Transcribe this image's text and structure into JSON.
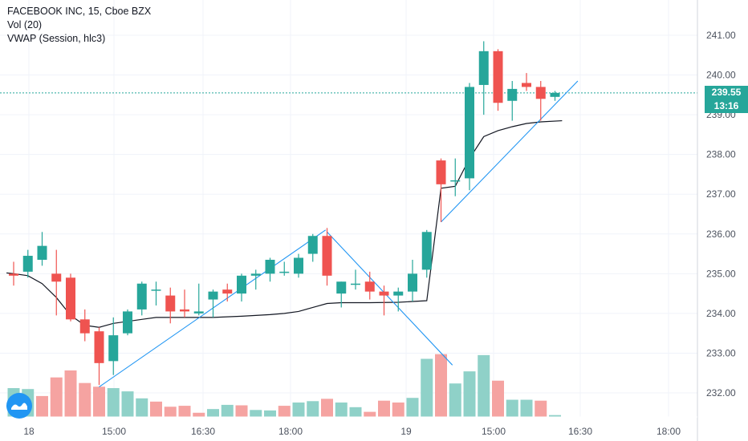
{
  "legend": {
    "title": "FACEBOOK INC, 15, Cboe BZX",
    "volume": "Vol (20)",
    "vwap": "VWAP (Session, hlc3)"
  },
  "price_tags": {
    "last_price": "239.55",
    "countdown": "13:16"
  },
  "colors": {
    "up": "#26a69a",
    "down": "#ef5350",
    "up_volume": "#8fd1c8",
    "down_volume": "#f5a3a1",
    "vwap_line": "#131722",
    "trendline": "#2196f3",
    "last_price_line": "#26a69a",
    "grid": "#f0f3fa",
    "axis_text": "#4c525e"
  },
  "chart_data": {
    "type": "candlestick",
    "symbol": "FACEBOOK INC",
    "interval": "15",
    "exchange": "Cboe BZX",
    "ylim": [
      231.4,
      241.9
    ],
    "y_ticks": [
      "241.00",
      "240.00",
      "239.00",
      "238.00",
      "237.00",
      "236.00",
      "235.00",
      "234.00",
      "233.00",
      "232.00"
    ],
    "x_ticks": [
      "18",
      "15:00",
      "16:30",
      "18:00",
      "19",
      "15:00",
      "16:30",
      "18:00"
    ],
    "grid": true,
    "last_price": 239.55,
    "candles": [
      {
        "o": 235.0,
        "h": 235.3,
        "l": 234.7,
        "c": 234.95
      },
      {
        "o": 235.05,
        "h": 235.6,
        "l": 234.9,
        "c": 235.45
      },
      {
        "o": 235.35,
        "h": 236.05,
        "l": 235.2,
        "c": 235.7
      },
      {
        "o": 235.0,
        "h": 235.6,
        "l": 233.95,
        "c": 234.8
      },
      {
        "o": 234.9,
        "h": 235.0,
        "l": 233.8,
        "c": 233.85
      },
      {
        "o": 233.85,
        "h": 234.1,
        "l": 233.3,
        "c": 233.5
      },
      {
        "o": 233.55,
        "h": 233.65,
        "l": 232.2,
        "c": 232.75
      },
      {
        "o": 232.8,
        "h": 233.9,
        "l": 232.45,
        "c": 233.45
      },
      {
        "o": 233.5,
        "h": 234.1,
        "l": 233.45,
        "c": 234.05
      },
      {
        "o": 234.1,
        "h": 234.8,
        "l": 233.95,
        "c": 234.75
      },
      {
        "o": 234.6,
        "h": 234.8,
        "l": 234.2,
        "c": 234.6
      },
      {
        "o": 234.45,
        "h": 234.65,
        "l": 233.75,
        "c": 234.05
      },
      {
        "o": 234.1,
        "h": 234.6,
        "l": 233.9,
        "c": 234.05
      },
      {
        "o": 234.0,
        "h": 234.75,
        "l": 233.95,
        "c": 234.05
      },
      {
        "o": 234.35,
        "h": 234.6,
        "l": 233.9,
        "c": 234.55
      },
      {
        "o": 234.6,
        "h": 234.75,
        "l": 234.3,
        "c": 234.5
      },
      {
        "o": 234.5,
        "h": 235.0,
        "l": 234.3,
        "c": 234.95
      },
      {
        "o": 234.95,
        "h": 235.1,
        "l": 234.6,
        "c": 235.0
      },
      {
        "o": 235.0,
        "h": 235.4,
        "l": 234.8,
        "c": 235.35
      },
      {
        "o": 235.05,
        "h": 235.3,
        "l": 234.95,
        "c": 235.05
      },
      {
        "o": 235.0,
        "h": 235.5,
        "l": 234.9,
        "c": 235.4
      },
      {
        "o": 235.5,
        "h": 236.0,
        "l": 235.3,
        "c": 235.95
      },
      {
        "o": 235.95,
        "h": 236.15,
        "l": 234.7,
        "c": 234.95
      },
      {
        "o": 234.5,
        "h": 234.8,
        "l": 234.15,
        "c": 234.8
      },
      {
        "o": 234.75,
        "h": 235.1,
        "l": 234.6,
        "c": 234.75
      },
      {
        "o": 234.8,
        "h": 235.05,
        "l": 234.35,
        "c": 234.55
      },
      {
        "o": 234.55,
        "h": 234.7,
        "l": 233.95,
        "c": 234.45
      },
      {
        "o": 234.45,
        "h": 234.65,
        "l": 234.05,
        "c": 234.55
      },
      {
        "o": 234.55,
        "h": 235.35,
        "l": 234.3,
        "c": 235.0
      },
      {
        "o": 235.1,
        "h": 236.1,
        "l": 234.9,
        "c": 236.05
      },
      {
        "o": 237.85,
        "h": 237.9,
        "l": 236.3,
        "c": 237.25
      },
      {
        "o": 237.35,
        "h": 237.9,
        "l": 236.95,
        "c": 237.35
      },
      {
        "o": 237.4,
        "h": 239.8,
        "l": 237.1,
        "c": 239.7
      },
      {
        "o": 239.75,
        "h": 240.85,
        "l": 239.0,
        "c": 240.6
      },
      {
        "o": 240.6,
        "h": 240.65,
        "l": 239.1,
        "c": 239.3
      },
      {
        "o": 239.35,
        "h": 239.85,
        "l": 238.85,
        "c": 239.65
      },
      {
        "o": 239.8,
        "h": 240.05,
        "l": 239.6,
        "c": 239.7
      },
      {
        "o": 239.7,
        "h": 239.85,
        "l": 238.85,
        "c": 239.4
      },
      {
        "o": 239.45,
        "h": 239.6,
        "l": 239.35,
        "c": 239.55
      }
    ],
    "volume": [
      {
        "v": 0.62,
        "up": true
      },
      {
        "v": 0.6,
        "up": true
      },
      {
        "v": 0.45,
        "up": false
      },
      {
        "v": 0.85,
        "up": false
      },
      {
        "v": 1.0,
        "up": false
      },
      {
        "v": 0.73,
        "up": false
      },
      {
        "v": 0.65,
        "up": false
      },
      {
        "v": 0.62,
        "up": true
      },
      {
        "v": 0.55,
        "up": true
      },
      {
        "v": 0.4,
        "up": true
      },
      {
        "v": 0.33,
        "up": false
      },
      {
        "v": 0.22,
        "up": false
      },
      {
        "v": 0.24,
        "up": false
      },
      {
        "v": 0.09,
        "up": false
      },
      {
        "v": 0.17,
        "up": true
      },
      {
        "v": 0.26,
        "up": true
      },
      {
        "v": 0.25,
        "up": false
      },
      {
        "v": 0.15,
        "up": true
      },
      {
        "v": 0.14,
        "up": true
      },
      {
        "v": 0.24,
        "up": false
      },
      {
        "v": 0.31,
        "up": true
      },
      {
        "v": 0.34,
        "up": true
      },
      {
        "v": 0.39,
        "up": false
      },
      {
        "v": 0.31,
        "up": true
      },
      {
        "v": 0.21,
        "up": true
      },
      {
        "v": 0.11,
        "up": false
      },
      {
        "v": 0.35,
        "up": false
      },
      {
        "v": 0.31,
        "up": false
      },
      {
        "v": 0.41,
        "up": true
      },
      {
        "v": 1.25,
        "up": true
      },
      {
        "v": 1.35,
        "up": false
      },
      {
        "v": 0.72,
        "up": true
      },
      {
        "v": 0.98,
        "up": true
      },
      {
        "v": 1.33,
        "up": true
      },
      {
        "v": 0.78,
        "up": false
      },
      {
        "v": 0.37,
        "up": true
      },
      {
        "v": 0.37,
        "up": true
      },
      {
        "v": 0.35,
        "up": false
      },
      {
        "v": 0.04,
        "up": true
      }
    ],
    "vwap": [
      [
        -0.5,
        235.02
      ],
      [
        0,
        235.0
      ],
      [
        1,
        234.95
      ],
      [
        2,
        234.75
      ],
      [
        3,
        234.4
      ],
      [
        4,
        233.95
      ],
      [
        5,
        233.7
      ],
      [
        6,
        233.65
      ],
      [
        7,
        233.75
      ],
      [
        8,
        233.8
      ],
      [
        9,
        233.85
      ],
      [
        10,
        233.9
      ],
      [
        11,
        233.9
      ],
      [
        12,
        233.9
      ],
      [
        14,
        233.9
      ],
      [
        16,
        233.93
      ],
      [
        18,
        233.97
      ],
      [
        19,
        234.0
      ],
      [
        20,
        234.05
      ],
      [
        21,
        234.15
      ],
      [
        22,
        234.25
      ],
      [
        23,
        234.27
      ],
      [
        25,
        234.27
      ],
      [
        27,
        234.28
      ],
      [
        28,
        234.3
      ],
      [
        29,
        234.32
      ],
      [
        30,
        237.15
      ],
      [
        31,
        237.2
      ],
      [
        32,
        237.9
      ],
      [
        33,
        238.45
      ],
      [
        34,
        238.6
      ],
      [
        35,
        238.7
      ],
      [
        36,
        238.78
      ],
      [
        37,
        238.82
      ],
      [
        38.5,
        238.85
      ]
    ],
    "trendlines": [
      {
        "x1": 6.0,
        "y1": 232.15,
        "x2": 21.9,
        "y2": 236.1
      },
      {
        "x1": 22.0,
        "y1": 236.05,
        "x2": 30.8,
        "y2": 232.7
      },
      {
        "x1": 30.0,
        "y1": 236.3,
        "x2": 39.6,
        "y2": 239.85
      }
    ]
  }
}
